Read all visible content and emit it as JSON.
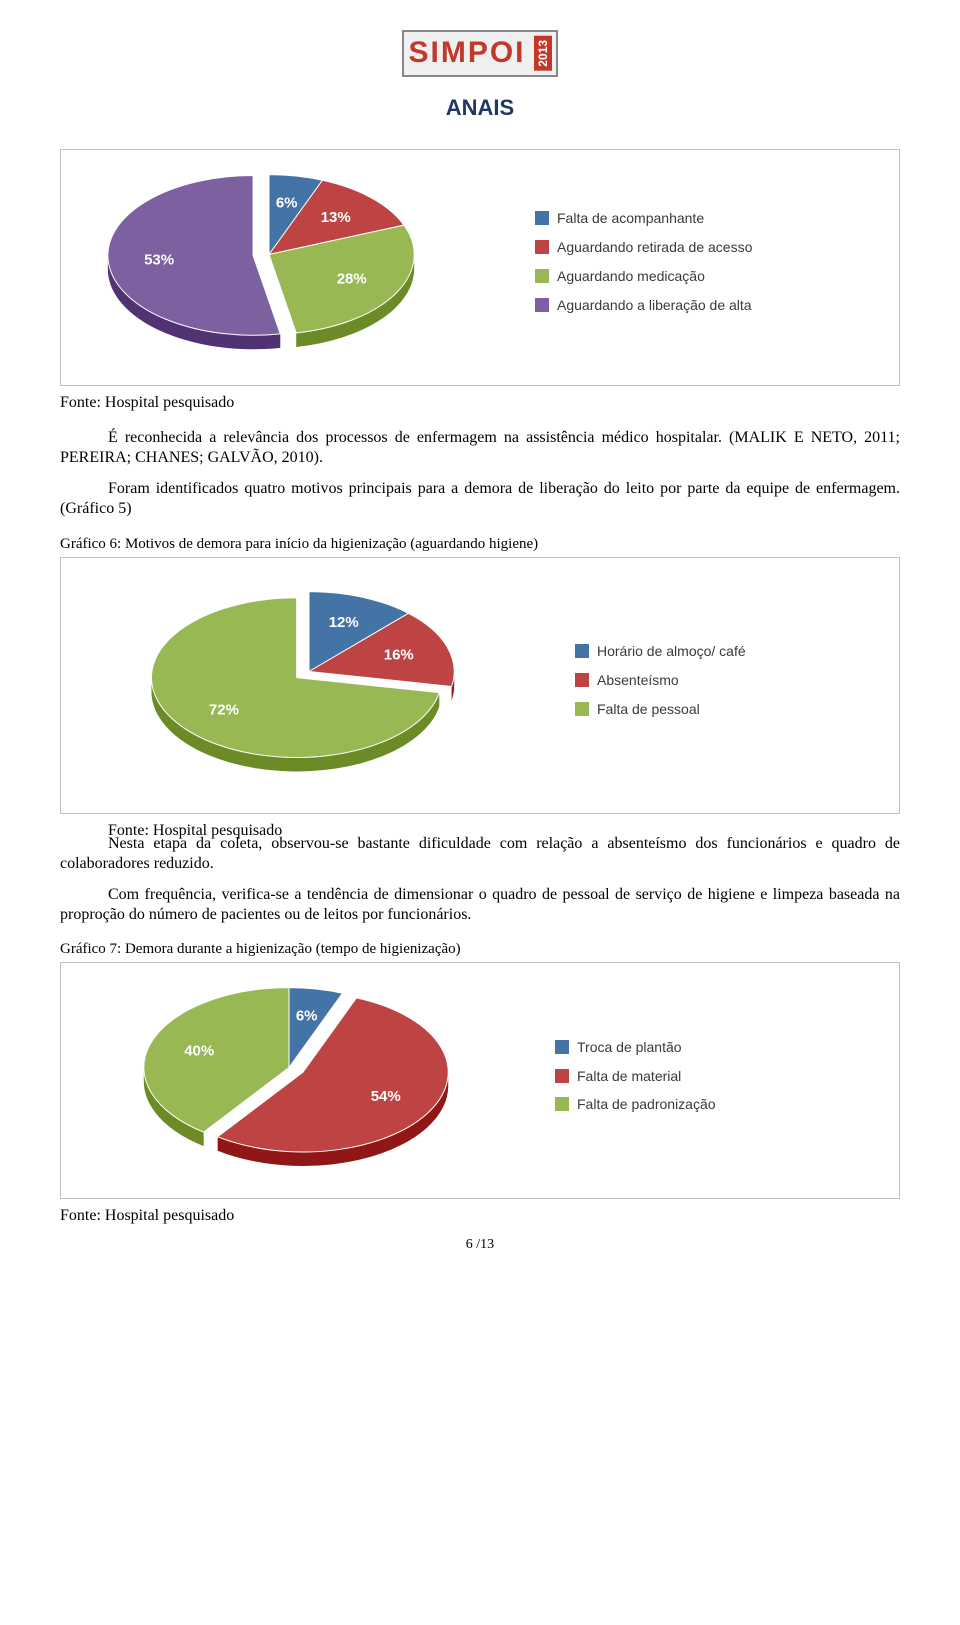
{
  "header": {
    "logo_text": "SIMPOI",
    "logo_year": "2013",
    "anais": "ANAIS"
  },
  "chart1": {
    "type": "pie",
    "separation_gap_deg": 6,
    "slices": [
      {
        "label": "Falta de acompanhante",
        "value": 6,
        "pct_label": "6%",
        "color": "#4473a6"
      },
      {
        "label": "Aguardando retirada de acesso",
        "value": 13,
        "pct_label": "13%",
        "color": "#bd4442"
      },
      {
        "label": "Aguardando medicação",
        "value": 28,
        "pct_label": "28%",
        "color": "#98b854"
      },
      {
        "label": "Aguardando a liberação de alta",
        "value": 53,
        "pct_label": "53%",
        "color": "#7d60a0"
      }
    ],
    "pulled_slice_index": 3,
    "label_fontsize": 14,
    "label_color": "#3a3a3a",
    "border_color": "#bfbfbf",
    "background_color": "#ffffff"
  },
  "source_line": "Fonte: Hospital pesquisado",
  "para1_a": "É reconhecida a relevância dos processos de enfermagem na assistência médico hospitalar. (MALIK E NETO, 2011; PEREIRA; CHANES; GALVÃO, 2010).",
  "para1_b": "Foram identificados quatro motivos principais para a demora de liberação do leito por parte da equipe de enfermagem. (Gráfico 5)",
  "caption_chart2": "Gráfico 6: Motivos de demora para início da higienização (aguardando higiene)",
  "chart2": {
    "type": "pie",
    "separation_gap_deg": 6,
    "slices": [
      {
        "label": "Horário de almoço/ café",
        "value": 12,
        "pct_label": "12%",
        "color": "#4473a6"
      },
      {
        "label": "Absenteísmo",
        "value": 16,
        "pct_label": "16%",
        "color": "#bd4442"
      },
      {
        "label": "Falta de pessoal",
        "value": 72,
        "pct_label": "72%",
        "color": "#98b854"
      }
    ],
    "pulled_slice_index": 2,
    "label_fontsize": 14,
    "label_color": "#3a3a3a",
    "border_color": "#bfbfbf",
    "background_color": "#ffffff"
  },
  "para2_a": "Nesta etapa da coleta, observou-se bastante dificuldade com relação a absenteísmo dos funcionários e quadro de colaboradores reduzido.",
  "para2_b": "Com frequência, verifica-se a tendência de dimensionar o quadro de pessoal de serviço de higiene e limpeza baseada na proproção do número de pacientes ou de leitos por funcionários.",
  "caption_chart3": "Gráfico 7: Demora durante a higienização (tempo de higienização)",
  "chart3": {
    "type": "pie",
    "separation_gap_deg": 6,
    "slices": [
      {
        "label": "Troca de plantão",
        "value": 6,
        "pct_label": "6%",
        "color": "#4473a6"
      },
      {
        "label": "Falta de material",
        "value": 54,
        "pct_label": "54%",
        "color": "#bd4442"
      },
      {
        "label": "Falta de padronização",
        "value": 40,
        "pct_label": "40%",
        "color": "#98b854"
      }
    ],
    "pulled_slice_index": 1,
    "label_fontsize": 14,
    "label_color": "#3a3a3a",
    "border_color": "#bfbfbf",
    "background_color": "#ffffff"
  },
  "footer_page": "6  /13"
}
